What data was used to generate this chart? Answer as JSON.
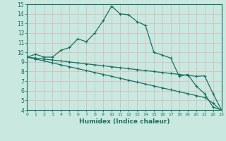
{
  "line1_x": [
    0,
    1,
    2,
    3,
    4,
    5,
    6,
    7,
    8,
    9,
    10,
    11,
    12,
    13,
    14,
    15,
    16,
    17,
    18,
    19,
    20,
    21,
    22,
    23
  ],
  "line1_y": [
    9.5,
    9.8,
    9.5,
    9.5,
    10.2,
    10.5,
    11.4,
    11.1,
    12.0,
    13.3,
    14.8,
    14.0,
    13.9,
    13.2,
    12.8,
    10.0,
    9.7,
    9.4,
    7.5,
    7.7,
    6.5,
    5.7,
    4.3,
    4.0
  ],
  "line2_x": [
    0,
    1,
    2,
    3,
    4,
    5,
    6,
    7,
    8,
    9,
    10,
    11,
    12,
    13,
    14,
    15,
    16,
    17,
    18,
    19,
    20,
    21,
    22,
    23
  ],
  "line2_y": [
    9.5,
    9.4,
    9.3,
    9.2,
    9.1,
    9.0,
    8.9,
    8.8,
    8.7,
    8.6,
    8.5,
    8.4,
    8.3,
    8.2,
    8.1,
    8.0,
    7.9,
    7.8,
    7.7,
    7.6,
    7.5,
    7.55,
    5.7,
    4.0
  ],
  "line3_x": [
    0,
    1,
    2,
    3,
    4,
    5,
    6,
    7,
    8,
    9,
    10,
    11,
    12,
    13,
    14,
    15,
    16,
    17,
    18,
    19,
    20,
    21,
    22,
    23
  ],
  "line3_y": [
    9.5,
    9.3,
    9.1,
    8.9,
    8.7,
    8.5,
    8.3,
    8.1,
    7.9,
    7.7,
    7.5,
    7.3,
    7.1,
    6.9,
    6.7,
    6.5,
    6.3,
    6.1,
    5.9,
    5.7,
    5.5,
    5.3,
    4.7,
    3.9
  ],
  "bg_color": "#c8e8e0",
  "grid_color": "#b8d8d0",
  "line_color": "#1a7060",
  "xlabel": "Humidex (Indice chaleur)",
  "xlim": [
    0,
    23
  ],
  "ylim": [
    4,
    15
  ],
  "xticks": [
    0,
    1,
    2,
    3,
    4,
    5,
    6,
    7,
    8,
    9,
    10,
    11,
    12,
    13,
    14,
    15,
    16,
    17,
    18,
    19,
    20,
    21,
    22,
    23
  ],
  "yticks": [
    4,
    5,
    6,
    7,
    8,
    9,
    10,
    11,
    12,
    13,
    14,
    15
  ],
  "marker": "+"
}
